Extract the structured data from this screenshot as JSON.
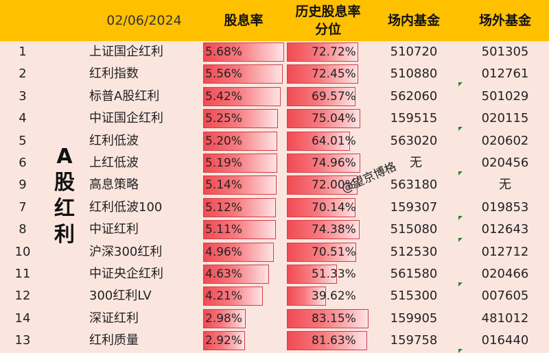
{
  "header": {
    "date": "02/06/2024",
    "col_yield": "股息率",
    "col_percentile_line1": "历史股息率",
    "col_percentile_line2": "分位",
    "col_onmarket": "场内基金",
    "col_offmarket": "场外基金"
  },
  "group_label": [
    "A",
    "股",
    "红",
    "利"
  ],
  "watermark": "@望京博格",
  "rows": [
    {
      "idx": "1",
      "name": "上证国企红利",
      "yield": "5.68%",
      "yield_value": 5.68,
      "pct": "72.72%",
      "pct_value": 72.72,
      "onmarket": "510720",
      "offmarket": "501305"
    },
    {
      "idx": "2",
      "name": "红利指数",
      "yield": "5.56%",
      "yield_value": 5.56,
      "pct": "72.45%",
      "pct_value": 72.45,
      "onmarket": "510880",
      "offmarket": "012761"
    },
    {
      "idx": "3",
      "name": "标普A股红利",
      "yield": "5.42%",
      "yield_value": 5.42,
      "pct": "69.57%",
      "pct_value": 69.57,
      "onmarket": "562060",
      "offmarket": "501029"
    },
    {
      "idx": "4",
      "name": "中证国企红利",
      "yield": "5.25%",
      "yield_value": 5.25,
      "pct": "75.04%",
      "pct_value": 75.04,
      "onmarket": "159515",
      "offmarket": "020115"
    },
    {
      "idx": "5",
      "name": "红利低波",
      "yield": "5.20%",
      "yield_value": 5.2,
      "pct": "64.01%",
      "pct_value": 64.01,
      "onmarket": "563020",
      "offmarket": "020602"
    },
    {
      "idx": "6",
      "name": "上红低波",
      "yield": "5.19%",
      "yield_value": 5.19,
      "pct": "74.96%",
      "pct_value": 74.96,
      "onmarket": "无",
      "offmarket": "020456"
    },
    {
      "idx": "9",
      "name": "高息策略",
      "yield": "5.14%",
      "yield_value": 5.14,
      "pct": "72.00%",
      "pct_value": 72.0,
      "onmarket": "563180",
      "offmarket": "无"
    },
    {
      "idx": "7",
      "name": "红利低波100",
      "yield": "5.12%",
      "yield_value": 5.12,
      "pct": "70.14%",
      "pct_value": 70.14,
      "onmarket": "159307",
      "offmarket": "019853"
    },
    {
      "idx": "8",
      "name": "中证红利",
      "yield": "5.11%",
      "yield_value": 5.11,
      "pct": "74.38%",
      "pct_value": 74.38,
      "onmarket": "515080",
      "offmarket": "012643"
    },
    {
      "idx": "10",
      "name": "沪深300红利",
      "yield": "4.96%",
      "yield_value": 4.96,
      "pct": "70.51%",
      "pct_value": 70.51,
      "onmarket": "512530",
      "offmarket": "012712"
    },
    {
      "idx": "11",
      "name": "中证央企红利",
      "yield": "4.63%",
      "yield_value": 4.63,
      "pct": "51.33%",
      "pct_value": 51.33,
      "onmarket": "561580",
      "offmarket": "020466"
    },
    {
      "idx": "12",
      "name": "300红利LV",
      "yield": "4.21%",
      "yield_value": 4.21,
      "pct": "39.62%",
      "pct_value": 39.62,
      "onmarket": "515300",
      "offmarket": "007605"
    },
    {
      "idx": "14",
      "name": "深证红利",
      "yield": "2.98%",
      "yield_value": 2.98,
      "pct": "83.15%",
      "pct_value": 83.15,
      "onmarket": "159905",
      "offmarket": "481012"
    },
    {
      "idx": "13",
      "name": "红利质量",
      "yield": "2.92%",
      "yield_value": 2.92,
      "pct": "81.63%",
      "pct_value": 81.63,
      "onmarket": "159758",
      "offmarket": "016440"
    }
  ],
  "colors": {
    "header_bg": "#ffc000",
    "body_bg": "#fbe6df",
    "bar_red": "#f04b53",
    "flag_green": "#1f8a2a"
  }
}
